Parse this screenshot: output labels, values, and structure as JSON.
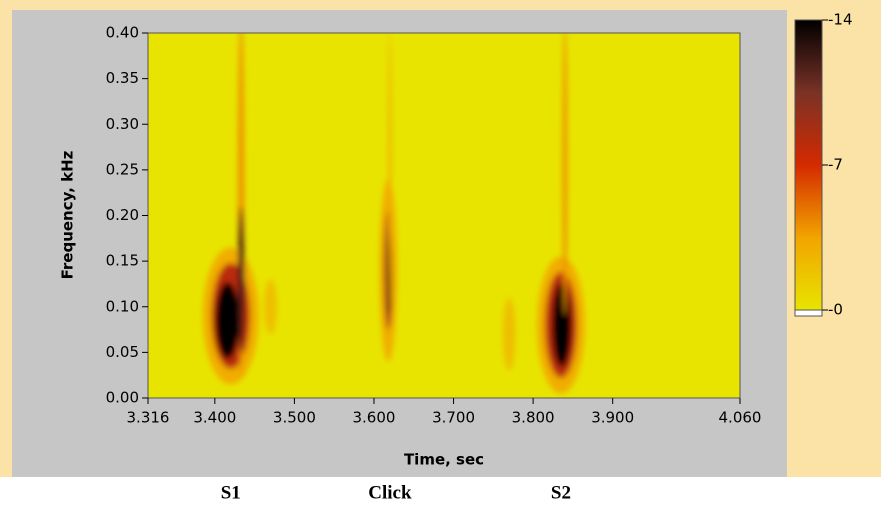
{
  "chart_data": {
    "type": "heatmap",
    "xlabel": "Time, sec",
    "ylabel": "Frequency, kHz",
    "xlim": [
      3.316,
      4.06
    ],
    "ylim": [
      0,
      0.4
    ],
    "xticks": [
      3.316,
      {
        "value": 3.4,
        "label": "3.400"
      },
      {
        "value": 3.5,
        "label": "3.500"
      },
      {
        "value": 3.6,
        "label": "3.600"
      },
      {
        "value": 3.7,
        "label": "3.700"
      },
      {
        "value": 3.8,
        "label": "3.800"
      },
      {
        "value": 3.9,
        "label": "3.900"
      },
      {
        "value": 4.06,
        "label": "4.060"
      }
    ],
    "yticks": [
      {
        "value": 0,
        "label": "0.00"
      },
      {
        "value": 0.05,
        "label": "0.05"
      },
      {
        "value": 0.1,
        "label": "0.10"
      },
      {
        "value": 0.15,
        "label": "0.15"
      },
      {
        "value": 0.2,
        "label": "0.20"
      },
      {
        "value": 0.25,
        "label": "0.25"
      },
      {
        "value": 0.3,
        "label": "0.30"
      },
      {
        "value": 0.35,
        "label": "0.35"
      },
      {
        "value": 0.4,
        "label": "0.40"
      }
    ],
    "clim": [
      0,
      -14
    ],
    "cticks": [
      {
        "value": 0,
        "label": "-0"
      },
      -7,
      -14
    ],
    "colormap": [
      "#e8e400",
      "#f2a400",
      "#d42a00",
      "#7a3226",
      "#000000"
    ],
    "blobs": [
      {
        "x": 3.42,
        "y": 0.09,
        "dx": 0.035,
        "dy": 0.075,
        "value": -3
      },
      {
        "x": 3.42,
        "y": 0.09,
        "dx": 0.024,
        "dy": 0.058,
        "value": -8
      },
      {
        "x": 3.416,
        "y": 0.085,
        "dx": 0.015,
        "dy": 0.042,
        "value": -14
      },
      {
        "x": 3.433,
        "y": 0.22,
        "dx": 0.004,
        "dy": 0.2,
        "value": -4
      },
      {
        "x": 3.433,
        "y": 0.13,
        "dx": 0.004,
        "dy": 0.08,
        "value": -12
      },
      {
        "x": 3.618,
        "y": 0.14,
        "dx": 0.011,
        "dy": 0.1,
        "value": -3
      },
      {
        "x": 3.618,
        "y": 0.14,
        "dx": 0.005,
        "dy": 0.065,
        "value": -9
      },
      {
        "x": 3.619,
        "y": 0.14,
        "dx": 0.003,
        "dy": 0.045,
        "value": -14
      },
      {
        "x": 3.62,
        "y": 0.25,
        "dx": 0.002,
        "dy": 0.15,
        "value": -3
      },
      {
        "x": 3.835,
        "y": 0.08,
        "dx": 0.03,
        "dy": 0.075,
        "value": -3
      },
      {
        "x": 3.835,
        "y": 0.08,
        "dx": 0.02,
        "dy": 0.058,
        "value": -8
      },
      {
        "x": 3.836,
        "y": 0.08,
        "dx": 0.012,
        "dy": 0.046,
        "value": -14
      },
      {
        "x": 3.84,
        "y": 0.25,
        "dx": 0.003,
        "dy": 0.16,
        "value": -4
      },
      {
        "x": 3.47,
        "y": 0.1,
        "dx": 0.008,
        "dy": 0.03,
        "value": -2
      },
      {
        "x": 3.77,
        "y": 0.07,
        "dx": 0.008,
        "dy": 0.04,
        "value": -2
      }
    ],
    "annotations": [
      {
        "text": "S1",
        "x": 3.42
      },
      {
        "text": "Click",
        "x": 3.62
      },
      {
        "text": "S2",
        "x": 3.835
      }
    ]
  }
}
